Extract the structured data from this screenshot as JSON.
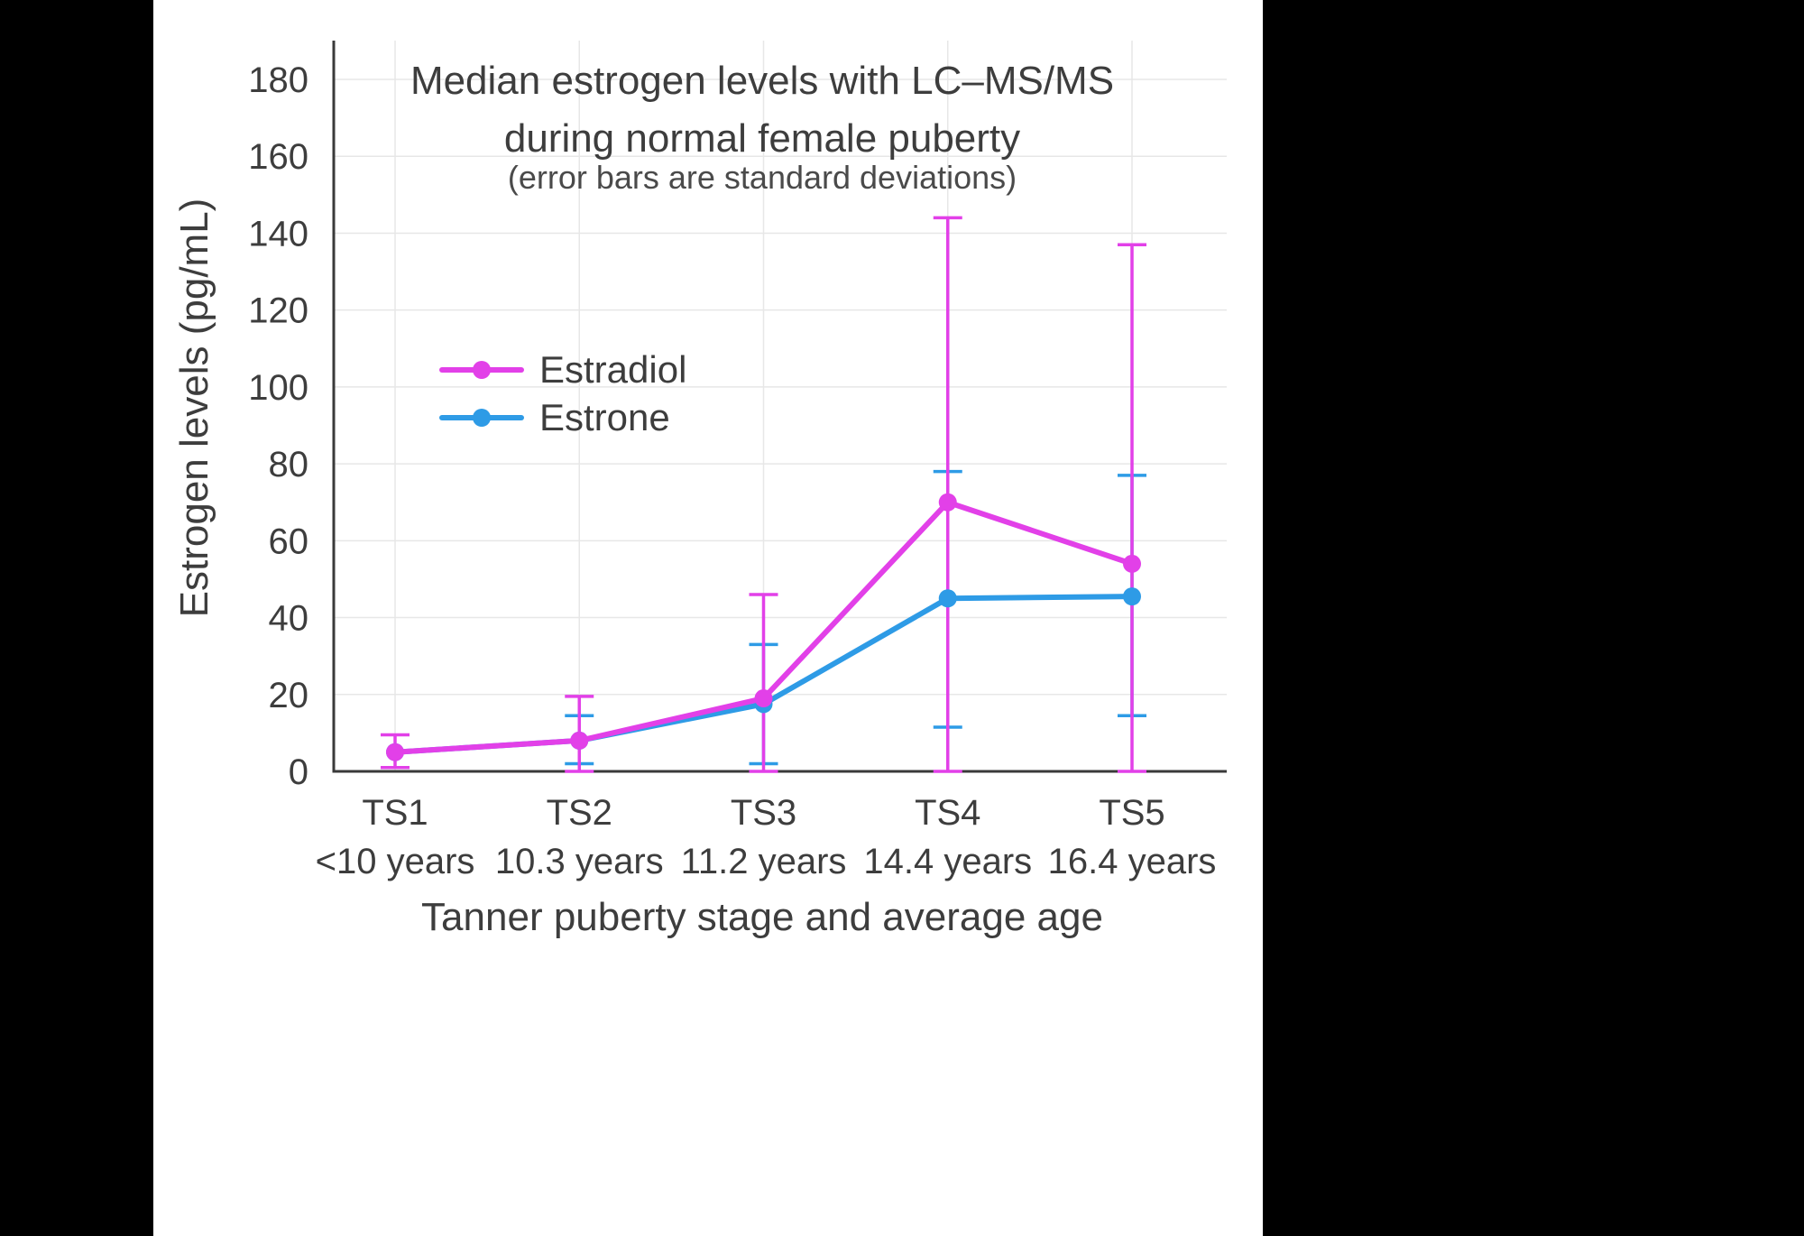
{
  "page": {
    "background_color": "#000000",
    "canvas_color": "#ffffff",
    "text_color": "#3d3d3d",
    "grid_color": "#e7e7e7",
    "axis_color": "#3a3a3a"
  },
  "chart_data": {
    "type": "line",
    "title_line1": "Median estrogen levels with LC–MS/MS",
    "title_line2": "during normal female puberty",
    "subtitle": "(error bars are standard deviations)",
    "xlabel": "Tanner puberty stage and average age",
    "ylabel": "Estrogen levels (pg/mL)",
    "categories": [
      "TS1",
      "TS2",
      "TS3",
      "TS4",
      "TS5"
    ],
    "category_ages": [
      "<10 years",
      "10.3 years",
      "11.2 years",
      "14.4 years",
      "16.4 years"
    ],
    "y_ticks": [
      0,
      20,
      40,
      60,
      80,
      100,
      120,
      140,
      160,
      180
    ],
    "ylim": [
      0,
      190
    ],
    "grid": true,
    "legend_position": "inside-upper-left",
    "series": [
      {
        "name": "Estradiol",
        "color": "#E240E8",
        "values": [
          5,
          8,
          19,
          70,
          54
        ],
        "error_low": [
          1,
          0,
          0,
          0,
          0
        ],
        "error_high": [
          9.5,
          19.5,
          46,
          144,
          137
        ]
      },
      {
        "name": "Estrone",
        "color": "#2E9BE6",
        "values": [
          5,
          8,
          17.5,
          45,
          45.5
        ],
        "error_low": [
          null,
          2,
          2,
          11.5,
          14.5
        ],
        "error_high": [
          null,
          14.5,
          33,
          78,
          77
        ]
      }
    ]
  }
}
